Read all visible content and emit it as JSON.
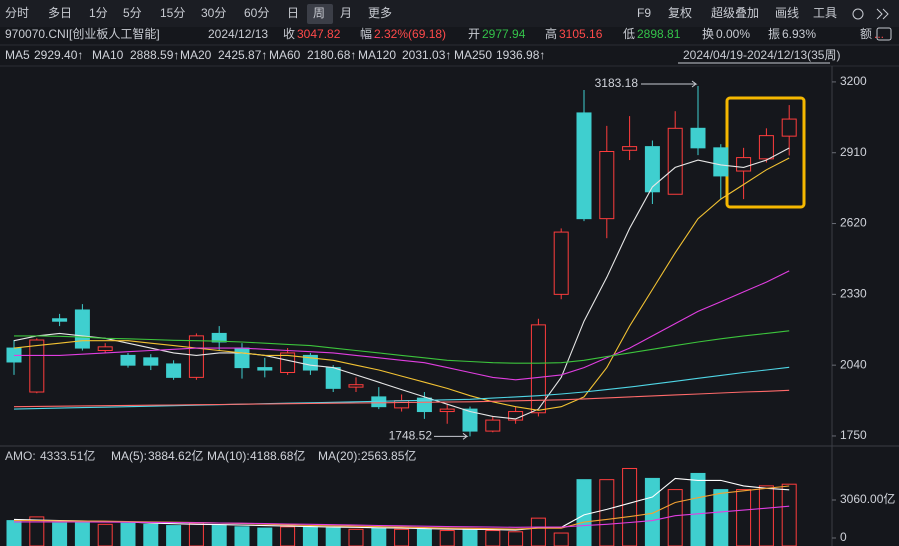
{
  "header": {
    "toolbar_left": [
      "分时",
      "多日",
      "1分",
      "5分",
      "15分",
      "30分",
      "60分",
      "日",
      "周",
      "月",
      "更多"
    ],
    "toolbar_right": [
      "F9",
      "复权",
      "超级叠加",
      "画线",
      "工具"
    ],
    "security": "970070.CNI[创业板人工智能]",
    "date": "2024/12/13",
    "close_label": "收",
    "change_label": "幅",
    "change": "2.32%(69.18)",
    "open_label": "开",
    "high_label": "高",
    "low_label": "低",
    "turnover_label": "换",
    "turnover": "0.00%",
    "amplitude_label": "振",
    "amplitude": "6.93%",
    "amount_label": "额",
    "amount": "...",
    "range": "2024/04/19-2024/12/13(35周)"
  },
  "chart_data": [
    {
      "type": "candlestick",
      "open": [
        2110,
        1930,
        2230,
        2266,
        2100,
        2080,
        2070,
        2045,
        1990,
        2170,
        2110,
        2030,
        2010,
        2080,
        2030,
        1950,
        1910,
        1865,
        1905,
        1850,
        1860,
        1770,
        1815,
        1845,
        2330,
        3073,
        2640,
        2920,
        2935,
        2740,
        3010,
        2930,
        2835,
        2885,
        2977.94
      ],
      "high": [
        2143,
        2150,
        2250,
        2290,
        2130,
        2090,
        2085,
        2060,
        2170,
        2200,
        2130,
        2070,
        2110,
        2090,
        2040,
        1990,
        1950,
        1920,
        1930,
        1880,
        1870,
        1830,
        1870,
        2230,
        2600,
        3167,
        3020,
        3060,
        2960,
        3080,
        3183.18,
        2945,
        2930,
        3010,
        3105.16
      ],
      "low": [
        2000,
        1925,
        2200,
        2100,
        2090,
        2030,
        2020,
        1980,
        1980,
        2100,
        1985,
        1990,
        2000,
        2000,
        1930,
        1930,
        1860,
        1850,
        1820,
        1800,
        1748.52,
        1765,
        1800,
        1830,
        2310,
        2630,
        2560,
        2880,
        2700,
        2740,
        2900,
        2720,
        2720,
        2870,
        2898.81
      ],
      "close": [
        2053,
        2143,
        2220,
        2110,
        2115,
        2040,
        2040,
        1990,
        2160,
        2135,
        2030,
        2020,
        2090,
        2020,
        1945,
        1960,
        1870,
        1895,
        1850,
        1860,
        1770,
        1815,
        1850,
        2205,
        2585,
        2640,
        2915,
        2935,
        2750,
        3010,
        2930,
        2815,
        2890,
        2980,
        3047.82
      ],
      "up_color": "#ff3d3d",
      "down_color": "#3fcfcf",
      "ylim": [
        1713,
        3257
      ],
      "yticks": [
        3200,
        2910,
        2620,
        2330,
        2040,
        1750
      ],
      "series": [
        {
          "name": "MA5",
          "color": "#e6e6e6",
          "value_label": "2929.40↑",
          "values": [
            2140,
            2160,
            2170,
            2160,
            2150,
            2130,
            2110,
            2090,
            2080,
            2090,
            2090,
            2080,
            2060,
            2040,
            2030,
            2000,
            1970,
            1940,
            1910,
            1880,
            1850,
            1830,
            1820,
            1860,
            1990,
            2220,
            2400,
            2600,
            2770,
            2850,
            2880,
            2860,
            2850,
            2880,
            2929.4
          ]
        },
        {
          "name": "MA10",
          "color": "#f2c233",
          "value_label": "2888.59↑",
          "values": [
            2110,
            2120,
            2130,
            2140,
            2140,
            2140,
            2130,
            2120,
            2110,
            2100,
            2090,
            2080,
            2080,
            2070,
            2060,
            2040,
            2020,
            1995,
            1970,
            1945,
            1915,
            1890,
            1870,
            1855,
            1870,
            1910,
            2030,
            2200,
            2350,
            2500,
            2640,
            2720,
            2780,
            2840,
            2888.59
          ]
        },
        {
          "name": "MA20",
          "color": "#e03ee0",
          "value_label": "2425.87↑",
          "values": [
            2080,
            2080,
            2080,
            2085,
            2090,
            2095,
            2100,
            2105,
            2110,
            2110,
            2110,
            2105,
            2100,
            2095,
            2090,
            2080,
            2070,
            2060,
            2050,
            2030,
            2010,
            1990,
            1980,
            1990,
            2000,
            2030,
            2070,
            2110,
            2160,
            2210,
            2260,
            2300,
            2340,
            2380,
            2425.87
          ]
        },
        {
          "name": "MA60",
          "color": "#3cc43c",
          "value_label": "2180.68↑",
          "values": [
            2160,
            2160,
            2158,
            2155,
            2150,
            2148,
            2145,
            2142,
            2140,
            2138,
            2135,
            2130,
            2125,
            2120,
            2110,
            2100,
            2090,
            2080,
            2070,
            2060,
            2055,
            2050,
            2048,
            2048,
            2050,
            2060,
            2075,
            2090,
            2105,
            2120,
            2135,
            2148,
            2160,
            2170,
            2180.68
          ]
        },
        {
          "name": "MA120",
          "color": "#4fd6e6",
          "value_label": "2031.03↑",
          "values": [
            1860,
            1862,
            1864,
            1866,
            1868,
            1870,
            1872,
            1874,
            1876,
            1878,
            1880,
            1882,
            1884,
            1886,
            1888,
            1890,
            1892,
            1894,
            1896,
            1898,
            1900,
            1905,
            1910,
            1915,
            1922,
            1930,
            1940,
            1950,
            1962,
            1974,
            1986,
            1998,
            2010,
            2020,
            2031.03
          ]
        },
        {
          "name": "MA250",
          "color": "#ff6a6a",
          "value_label": "1936.98↑",
          "values": [
            1870,
            1871,
            1872,
            1873,
            1874,
            1875,
            1876,
            1877,
            1878,
            1879,
            1880,
            1881,
            1882,
            1883,
            1884,
            1885,
            1886,
            1887,
            1888,
            1889,
            1890,
            1892,
            1894,
            1896,
            1898,
            1902,
            1906,
            1910,
            1914,
            1918,
            1922,
            1926,
            1930,
            1933,
            1936.98
          ]
        }
      ]
    },
    {
      "type": "volume",
      "name": "AMO:",
      "value_label": "4333.51亿",
      "values": [
        1400,
        1700,
        1200,
        1300,
        1100,
        1200,
        1100,
        1000,
        1200,
        1000,
        900,
        800,
        900,
        900,
        800,
        700,
        800,
        700,
        700,
        600,
        700,
        600,
        500,
        1600,
        400,
        4700,
        4700,
        5600,
        4800,
        3900,
        5200,
        3900,
        3900,
        4200,
        4333.51
      ],
      "ylim": [
        0,
        5880
      ],
      "yticks": [
        {
          "value": 3060,
          "label": "3060.00亿"
        },
        0
      ],
      "series": [
        {
          "name": "MA(5):",
          "color": "#ffffff",
          "value_label": "3884.62亿",
          "values": [
            1500,
            1450,
            1400,
            1380,
            1340,
            1300,
            1200,
            1150,
            1100,
            1080,
            1040,
            1000,
            960,
            920,
            880,
            860,
            820,
            800,
            760,
            720,
            700,
            680,
            640,
            820,
            850,
            1860,
            2300,
            2800,
            3300,
            4800,
            4640,
            4640,
            4200,
            4000,
            3884.62
          ]
        },
        {
          "name": "MA(10):",
          "color": "#f2a233",
          "value_label": "4188.68亿",
          "values": [
            1400,
            1400,
            1380,
            1370,
            1350,
            1330,
            1300,
            1270,
            1240,
            1200,
            1170,
            1110,
            1060,
            1010,
            980,
            950,
            920,
            880,
            840,
            800,
            780,
            750,
            720,
            790,
            790,
            1280,
            1500,
            1720,
            1990,
            2860,
            3250,
            3600,
            3800,
            4000,
            4188.68
          ]
        },
        {
          "name": "MA(20):",
          "color": "#e03ee0",
          "value_label": "2563.85亿",
          "values": [
            1300,
            1300,
            1300,
            1290,
            1280,
            1270,
            1260,
            1250,
            1230,
            1210,
            1190,
            1160,
            1130,
            1100,
            1070,
            1040,
            1010,
            980,
            950,
            920,
            900,
            880,
            860,
            880,
            880,
            1000,
            1100,
            1250,
            1400,
            1800,
            1950,
            2100,
            2250,
            2400,
            2563.85
          ]
        }
      ]
    }
  ]
}
